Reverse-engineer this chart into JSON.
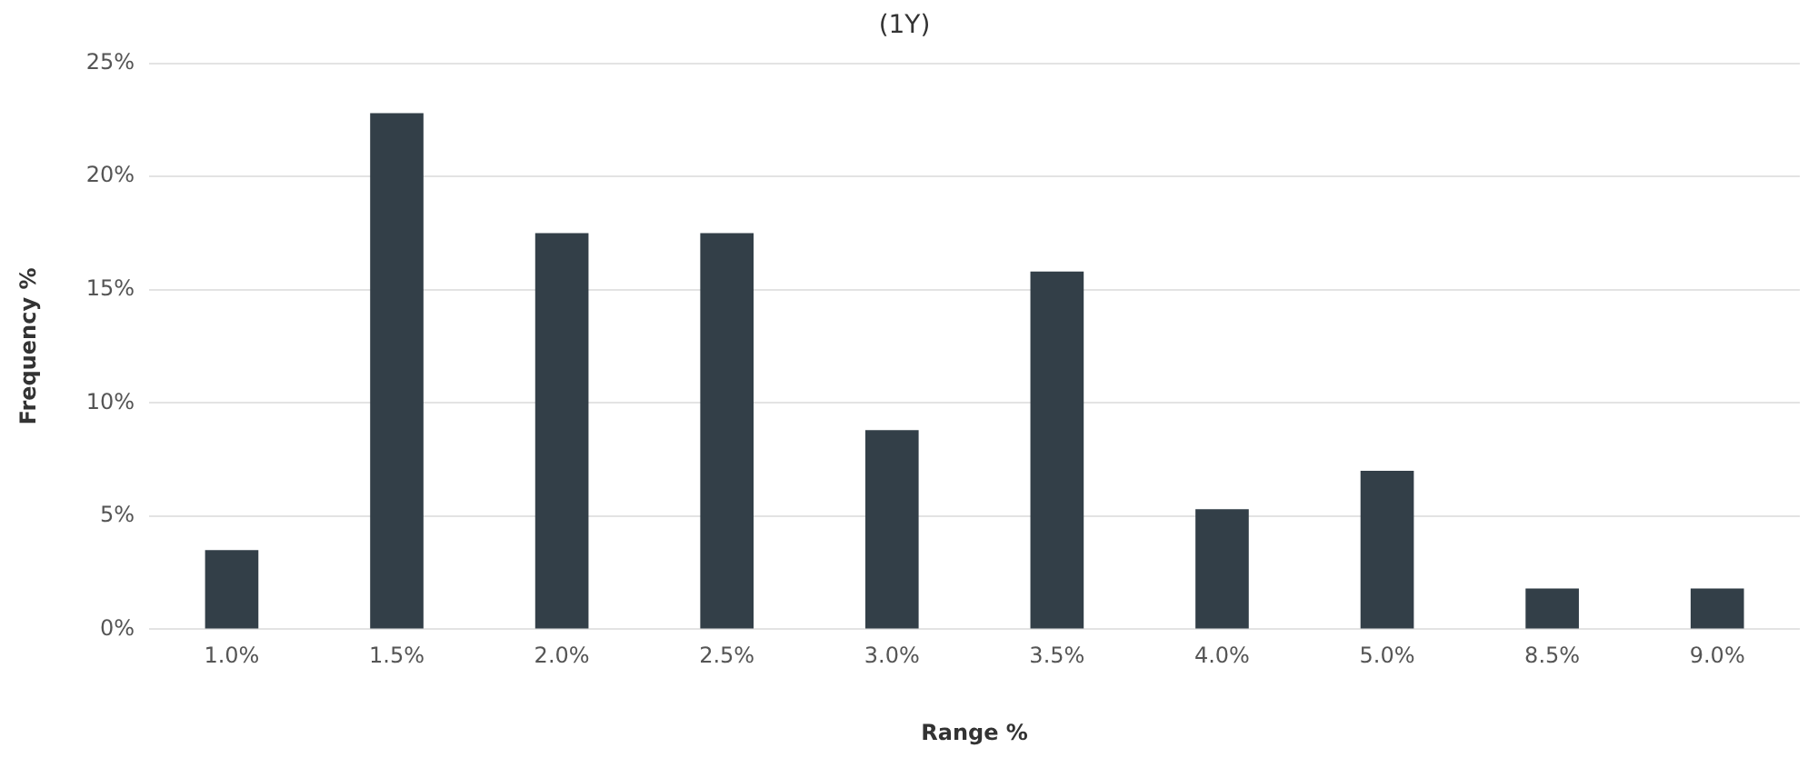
{
  "chart_data": {
    "type": "bar",
    "title": "(1Y)",
    "xlabel": "Range %",
    "ylabel": "Frequency %",
    "categories": [
      "1.0%",
      "1.5%",
      "2.0%",
      "2.5%",
      "3.0%",
      "3.5%",
      "4.0%",
      "5.0%",
      "8.5%",
      "9.0%"
    ],
    "values": [
      3.5,
      22.8,
      17.5,
      17.5,
      8.8,
      15.8,
      5.3,
      7.0,
      1.8,
      1.8
    ],
    "color": "#333f48",
    "ylim": [
      0,
      25
    ],
    "yticks": [
      {
        "value": 0,
        "label": "0%"
      },
      {
        "value": 5,
        "label": "5%"
      },
      {
        "value": 10,
        "label": "10%"
      },
      {
        "value": 15,
        "label": "15%"
      },
      {
        "value": 20,
        "label": "20%"
      },
      {
        "value": 25,
        "label": "25%"
      }
    ],
    "grid": "y",
    "legend": false
  }
}
